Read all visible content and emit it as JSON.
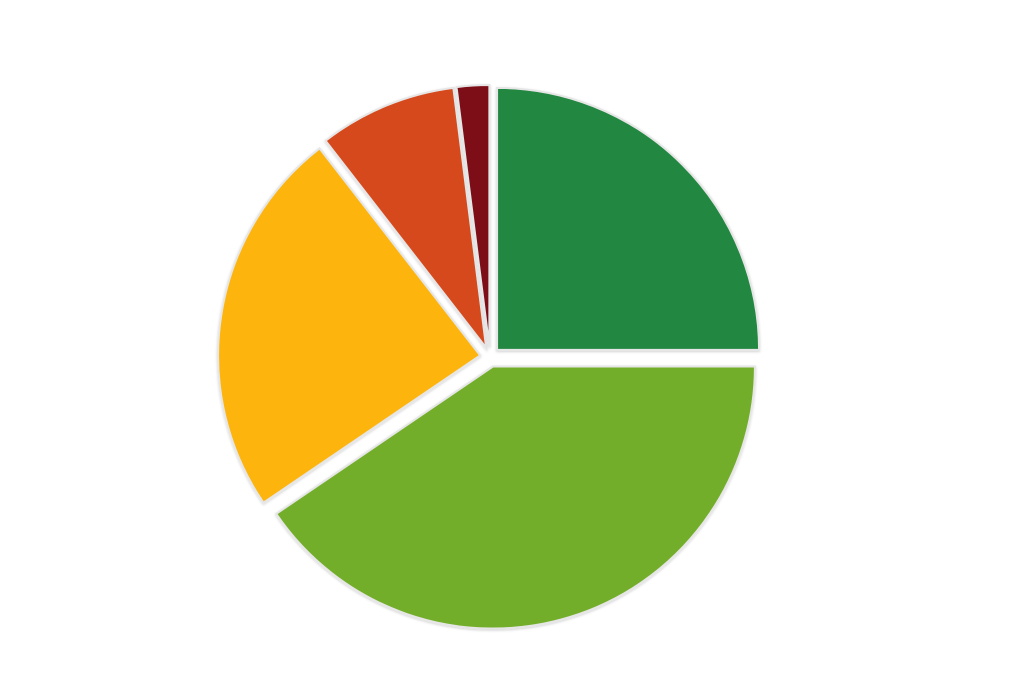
{
  "chart_data": {
    "type": "pie",
    "title": "",
    "start_angle_deg": 0,
    "direction": "clockwise",
    "legend": "none",
    "slices": [
      {
        "value": 25.0,
        "color": "#21873F",
        "exploded": true
      },
      {
        "value": 40.5,
        "color": "#73AE29",
        "exploded": true
      },
      {
        "value": 24.0,
        "color": "#FDB40A",
        "exploded": true
      },
      {
        "value": 8.5,
        "color": "#D5491C",
        "exploded": true
      },
      {
        "value": 2.0,
        "color": "#7D0F19",
        "exploded": true
      }
    ]
  }
}
